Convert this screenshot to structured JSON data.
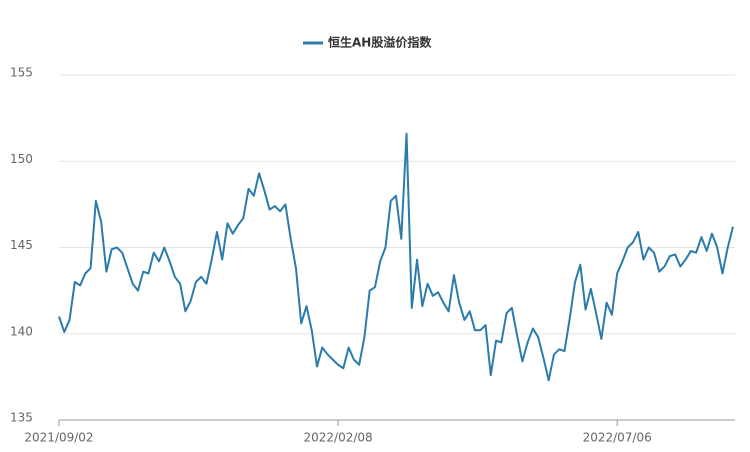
{
  "chart_data": {
    "type": "line",
    "categories": [
      "2021/09/02",
      null,
      null,
      null,
      null,
      null,
      null,
      null,
      null,
      null,
      null,
      null,
      null,
      null,
      null,
      null,
      null,
      null,
      null,
      null,
      null,
      null,
      null,
      null,
      null,
      null,
      null,
      null,
      null,
      null,
      null,
      null,
      null,
      null,
      null,
      null,
      null,
      null,
      null,
      null,
      null,
      null,
      null,
      null,
      null,
      null,
      null,
      null,
      null,
      null,
      null,
      null,
      null,
      "2022/02/08",
      null,
      null,
      null,
      null,
      null,
      null,
      null,
      null,
      null,
      null,
      null,
      null,
      null,
      null,
      null,
      null,
      null,
      null,
      null,
      null,
      null,
      null,
      null,
      null,
      null,
      null,
      null,
      null,
      null,
      null,
      null,
      null,
      null,
      null,
      null,
      null,
      null,
      null,
      null,
      null,
      null,
      null,
      null,
      null,
      null,
      null,
      null,
      null,
      null,
      null,
      null,
      null,
      "2022/07/06",
      null,
      null,
      null,
      null,
      null,
      null,
      null,
      null,
      null,
      null,
      null,
      null,
      null,
      null,
      null,
      null,
      null,
      null,
      null,
      null,
      null,
      null
    ],
    "series": [
      {
        "name": "恒生AH股溢价指数",
        "color": "#2b7bab",
        "values": [
          141.0,
          140.1,
          140.8,
          143.0,
          142.8,
          143.5,
          143.8,
          147.7,
          146.5,
          143.6,
          144.9,
          145.0,
          144.7,
          143.8,
          142.9,
          142.5,
          143.6,
          143.5,
          144.7,
          144.2,
          145.0,
          144.2,
          143.3,
          142.9,
          141.3,
          141.9,
          143.0,
          143.3,
          142.9,
          144.3,
          145.9,
          144.3,
          146.4,
          145.8,
          146.3,
          146.7,
          148.4,
          148.0,
          149.3,
          148.3,
          147.2,
          147.4,
          147.1,
          147.5,
          145.5,
          143.8,
          140.6,
          141.6,
          140.2,
          138.1,
          139.2,
          138.8,
          138.5,
          138.2,
          138.0,
          139.2,
          138.5,
          138.2,
          139.8,
          142.5,
          142.7,
          144.2,
          145.0,
          147.7,
          148.0,
          145.5,
          151.6,
          141.5,
          144.3,
          141.6,
          142.9,
          142.2,
          142.4,
          141.8,
          141.3,
          143.4,
          141.8,
          140.8,
          141.3,
          140.2,
          140.2,
          140.5,
          137.6,
          139.6,
          139.5,
          141.2,
          141.5,
          139.9,
          138.4,
          139.5,
          140.3,
          139.8,
          138.6,
          137.3,
          138.8,
          139.1,
          139.0,
          140.9,
          143.0,
          144.0,
          141.4,
          142.6,
          141.2,
          139.7,
          141.8,
          141.1,
          143.5,
          144.2,
          145.0,
          145.3,
          145.9,
          144.3,
          145.0,
          144.7,
          143.6,
          143.9,
          144.5,
          144.6,
          143.9,
          144.3,
          144.8,
          144.7,
          145.6,
          144.8,
          145.8,
          145.0,
          143.5,
          145.0,
          146.2
        ]
      }
    ],
    "ylim": [
      135,
      155
    ],
    "yticks": [
      135,
      140,
      145,
      150,
      155
    ],
    "grid": true
  }
}
